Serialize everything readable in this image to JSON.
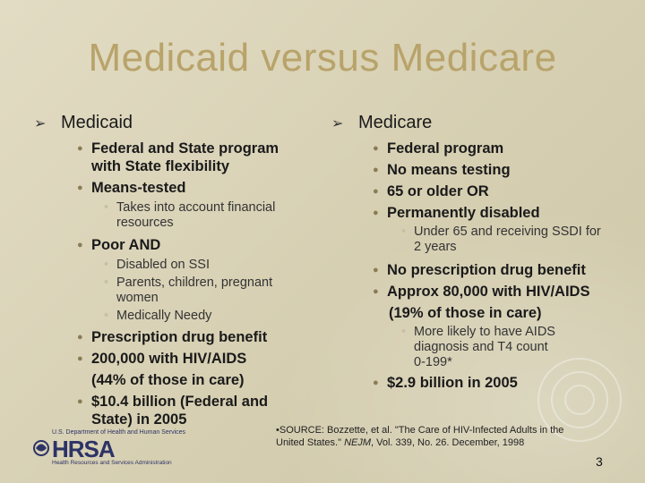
{
  "title": "Medicaid versus Medicare",
  "left": {
    "heading": "Medicaid",
    "item1": "Federal and State program with State flexibility",
    "item2": "Means-tested",
    "item2_sub": "Takes into account financial resources",
    "item3": "Poor AND",
    "item3_subs": [
      "Disabled on SSI",
      "Parents, children, pregnant women",
      "Medically Needy"
    ],
    "item4": "Prescription drug benefit",
    "item5_line1": "200,000 with HIV/AIDS",
    "item5_line2": "(44% of those in care)",
    "item6": "$10.4 billion (Federal and State) in 2005"
  },
  "right": {
    "heading": "Medicare",
    "items": [
      "Federal program",
      "No means testing",
      "65 or older OR",
      "Permanently disabled"
    ],
    "item4_sub": "Under 65 and receiving SSDI for 2 years",
    "item5": "No prescription drug benefit",
    "item6_line1": "Approx 80,000 with HIV/AIDS",
    "item6_line2": "(19% of those in care)",
    "item6_sub_line1": "More likely to have AIDS diagnosis and T4 count",
    "item6_sub_line2": "0-199*",
    "item7": "$2.9 billion in 2005"
  },
  "source": {
    "prefix": "•SOURCE: Bozzette, et al. \"The Care of HIV-Infected Adults in the United States.\" ",
    "journal": "NEJM",
    "suffix": ", Vol. 339, No. 26. December, 1998"
  },
  "logo": {
    "brand": "HRSA",
    "top_text": "U.S. Department of Health and Human Services",
    "bottom_text": "Health Resources and Services Administration"
  },
  "page_number": "3",
  "colors": {
    "title": "#b8a36a",
    "background": "#d9d2b8",
    "logo": "#2d3366"
  }
}
